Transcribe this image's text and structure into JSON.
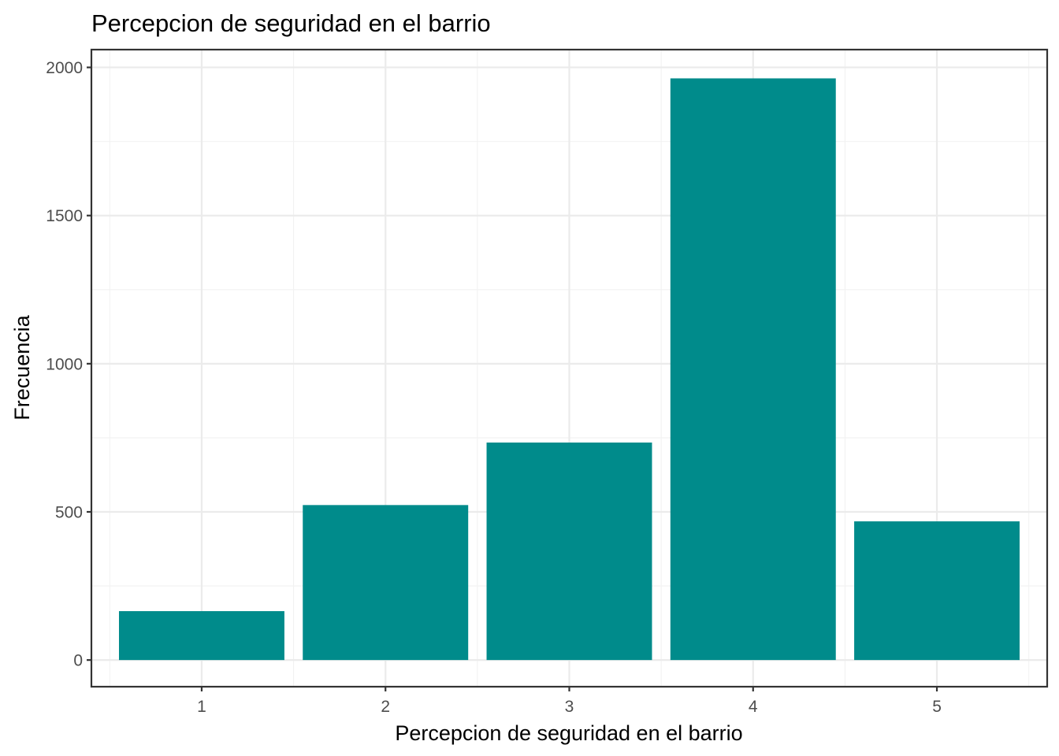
{
  "chart_data": {
    "type": "bar",
    "title": "Percepcion de seguridad en el barrio",
    "xlabel": "Percepcion de seguridad en el barrio",
    "ylabel": "Frecuencia",
    "categories": [
      "1",
      "2",
      "3",
      "4",
      "5"
    ],
    "values": [
      165,
      523,
      734,
      1963,
      468
    ],
    "ylim": [
      -90,
      2060
    ],
    "yticks": [
      0,
      500,
      1000,
      1500,
      2000
    ],
    "ytick_labels": [
      "0",
      "500",
      "1000",
      "1500",
      "2000"
    ],
    "grid": true,
    "bar_color": "#008b8b",
    "theme": "bw"
  }
}
